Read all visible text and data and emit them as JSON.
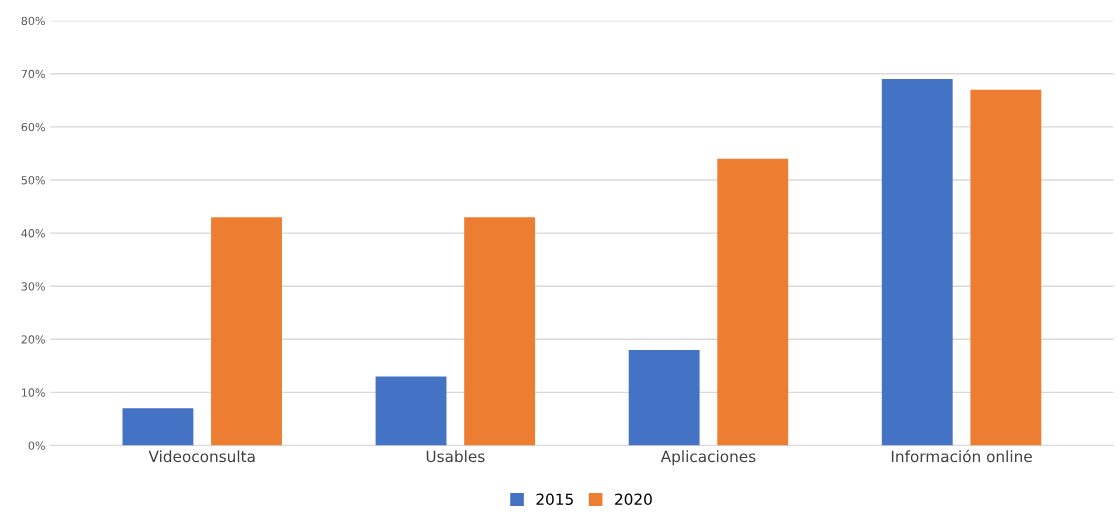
{
  "chart_data": {
    "type": "bar",
    "categories": [
      "Videoconsulta",
      "Usables",
      "Aplicaciones",
      "Información online"
    ],
    "series": [
      {
        "name": "2015",
        "color": "#4472c4",
        "values": [
          7,
          13,
          18,
          69
        ]
      },
      {
        "name": "2020",
        "color": "#ed7d31",
        "values": [
          43,
          43,
          54,
          67
        ]
      }
    ],
    "ylim": [
      0,
      80
    ],
    "yticks": [
      {
        "value": 0,
        "label": "0%"
      },
      {
        "value": 10,
        "label": "10%"
      },
      {
        "value": 20,
        "label": "20%"
      },
      {
        "value": 30,
        "label": "30%"
      },
      {
        "value": 40,
        "label": "40%"
      },
      {
        "value": 50,
        "label": "50%"
      },
      {
        "value": 60,
        "label": "60%"
      },
      {
        "value": 70,
        "label": "70%"
      },
      {
        "value": 80,
        "label": "80%"
      }
    ],
    "grid": "y",
    "legend": "bottom"
  }
}
